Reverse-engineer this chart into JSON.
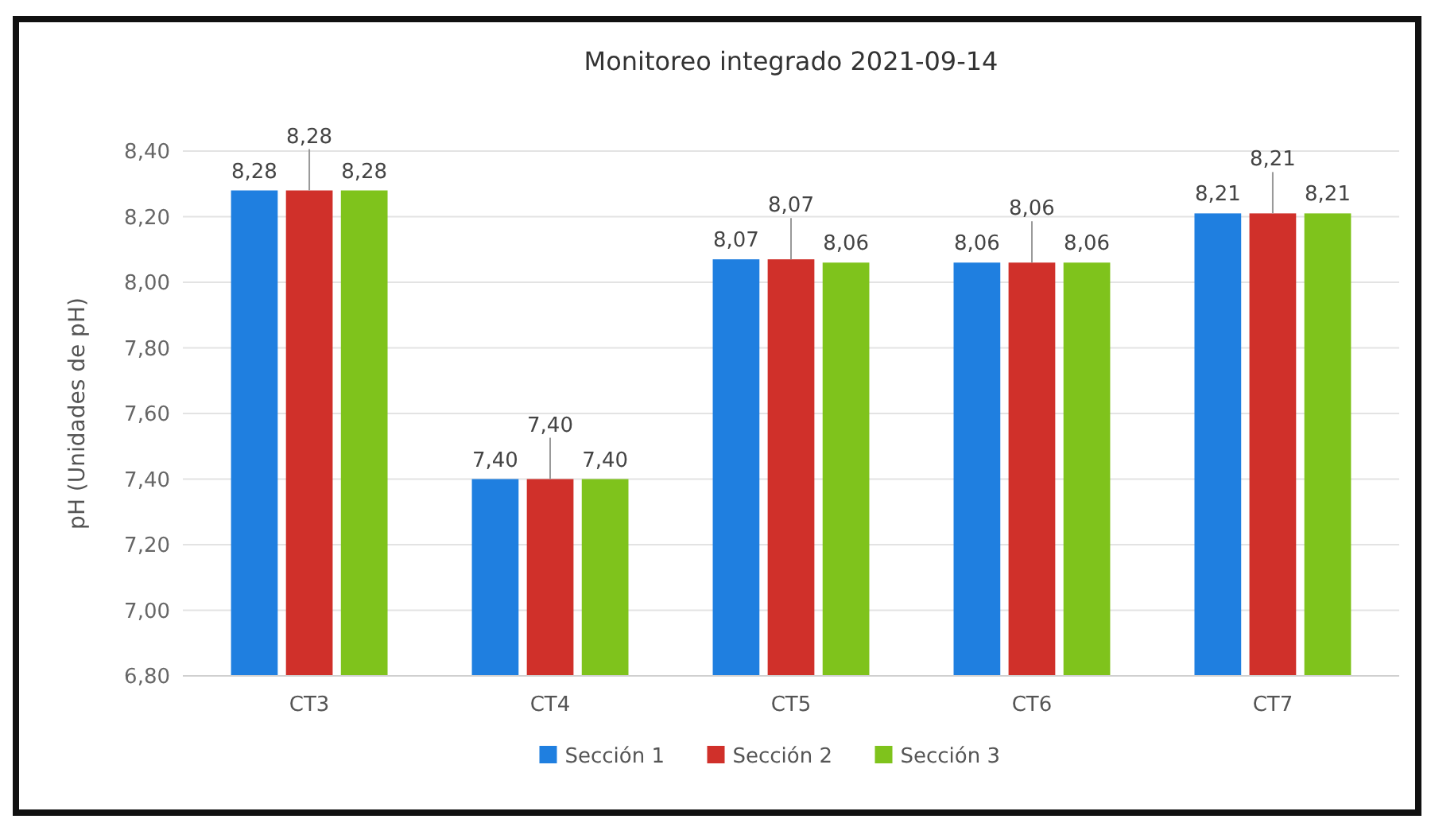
{
  "chart_data": {
    "type": "bar",
    "title": "Monitoreo integrado 2021-09-14",
    "ylabel": "pH (Unidades de pH)",
    "categories": [
      "CT3",
      "CT4",
      "CT5",
      "CT6",
      "CT7"
    ],
    "series": [
      {
        "name": "Sección 1",
        "color": "#1f7fe0",
        "values": [
          8.28,
          7.4,
          8.07,
          8.06,
          8.21
        ],
        "value_labels": [
          "8,28",
          "7,40",
          "8,07",
          "8,06",
          "8,21"
        ]
      },
      {
        "name": "Sección 2",
        "color": "#d0302a",
        "values": [
          8.28,
          7.4,
          8.07,
          8.06,
          8.21
        ],
        "value_labels": [
          "8,28",
          "7,40",
          "8,07",
          "8,06",
          "8,21"
        ]
      },
      {
        "name": "Sección 3",
        "color": "#7fc31c",
        "values": [
          8.28,
          7.4,
          8.06,
          8.06,
          8.21
        ],
        "value_labels": [
          "8,28",
          "7,40",
          "8,06",
          "8,06",
          "8,21"
        ]
      }
    ],
    "ylim": [
      6.8,
      8.4
    ],
    "yticks": [
      {
        "value": 6.8,
        "label": "6,80"
      },
      {
        "value": 7.0,
        "label": "7,00"
      },
      {
        "value": 7.2,
        "label": "7,20"
      },
      {
        "value": 7.4,
        "label": "7,40"
      },
      {
        "value": 7.6,
        "label": "7,60"
      },
      {
        "value": 7.8,
        "label": "7,80"
      },
      {
        "value": 8.0,
        "label": "8,00"
      },
      {
        "value": 8.2,
        "label": "8,20"
      },
      {
        "value": 8.4,
        "label": "8,40"
      }
    ],
    "grid": "y",
    "legend": "bottom"
  }
}
